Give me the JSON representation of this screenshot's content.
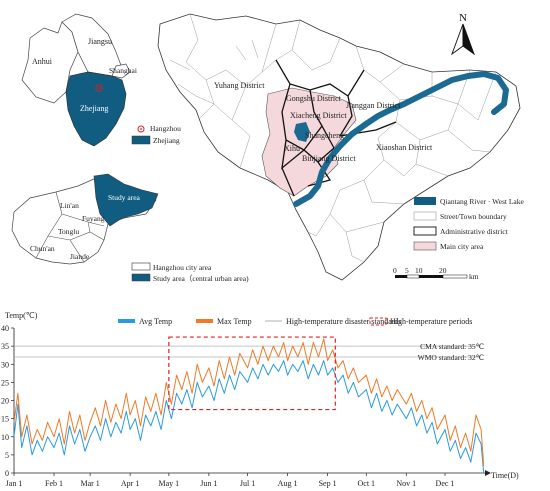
{
  "maps": {
    "province_labels": [
      "Anhui",
      "Jiangsu",
      "Shanghai",
      "Zhejiang"
    ],
    "inset_legend": {
      "point_label": "Hangzhou",
      "area_label": "Zhejiang"
    },
    "city_labels": [
      "Lin'an",
      "Fuyang",
      "Tonglu",
      "Chun'an",
      "Jiande",
      "Study area"
    ],
    "city_legend": {
      "city_label": "Hangzhou city area",
      "study_label": "Study area（central urban area)"
    },
    "district_labels": [
      "Yuhang District",
      "Gongshu District",
      "Xiacheng District",
      "Jianggan District",
      "Shangcheng",
      "Xihu",
      "Binjiang District",
      "Xiaoshan District"
    ],
    "north_label": "N",
    "main_legend": [
      "Qiantang River · West Lake",
      "Street/Town boundary",
      "Administrative district",
      "Main city area"
    ],
    "scalebar": {
      "ticks": [
        "0",
        "5",
        "10",
        "20"
      ],
      "unit": "km"
    },
    "colors": {
      "water": "#1a6a92",
      "main_city": "#f4d8dc",
      "boundary": "#9a9a9a",
      "district": "#222222"
    }
  },
  "chart_data": {
    "type": "line",
    "ylabel": "Temp(℃)",
    "xlabel": "Time(D)",
    "ylim": [
      0,
      40
    ],
    "yticks": [
      0,
      5,
      10,
      15,
      20,
      25,
      30,
      35,
      40
    ],
    "months": [
      "Jan 1",
      "Feb 1",
      "Mar 1",
      "Apr 1",
      "May 1",
      "Jun 1",
      "Jul 1",
      "Aug 1",
      "Sep 1",
      "Oct 1",
      "Nov 1",
      "Dec 1"
    ],
    "month_start_days": [
      0,
      31,
      59,
      90,
      120,
      151,
      181,
      212,
      243,
      273,
      304,
      334
    ],
    "days_in_year": 365,
    "legend": [
      "Avg Temp",
      "Max Temp",
      "High-temperature disaster standards",
      "High-temperature periods"
    ],
    "series_colors": {
      "avg": "#2b9be0",
      "max": "#ef7a27",
      "standard": "#b0b0b0",
      "period": "#e02020"
    },
    "standards": [
      {
        "label": "CMA standard: 35℃",
        "value": 35
      },
      {
        "label": "WMO standard: 32℃",
        "value": 32
      }
    ],
    "high_temp_period": {
      "start_day": 120,
      "end_day": 249,
      "low": 17.5,
      "high": 37.5
    },
    "series": [
      {
        "name": "Avg Temp",
        "key": "avg",
        "values": [
          {
            "d": 0,
            "v": 10
          },
          {
            "d": 3,
            "v": 19
          },
          {
            "d": 6,
            "v": 7
          },
          {
            "d": 10,
            "v": 13
          },
          {
            "d": 14,
            "v": 5
          },
          {
            "d": 18,
            "v": 9
          },
          {
            "d": 22,
            "v": 6
          },
          {
            "d": 26,
            "v": 10
          },
          {
            "d": 31,
            "v": 7
          },
          {
            "d": 35,
            "v": 11
          },
          {
            "d": 39,
            "v": 5
          },
          {
            "d": 43,
            "v": 13
          },
          {
            "d": 47,
            "v": 8
          },
          {
            "d": 51,
            "v": 12
          },
          {
            "d": 55,
            "v": 6
          },
          {
            "d": 59,
            "v": 10
          },
          {
            "d": 63,
            "v": 13
          },
          {
            "d": 67,
            "v": 9
          },
          {
            "d": 71,
            "v": 15
          },
          {
            "d": 75,
            "v": 10
          },
          {
            "d": 79,
            "v": 14
          },
          {
            "d": 83,
            "v": 11
          },
          {
            "d": 87,
            "v": 17
          },
          {
            "d": 90,
            "v": 12
          },
          {
            "d": 94,
            "v": 15
          },
          {
            "d": 98,
            "v": 9
          },
          {
            "d": 102,
            "v": 16
          },
          {
            "d": 106,
            "v": 13
          },
          {
            "d": 110,
            "v": 17
          },
          {
            "d": 114,
            "v": 12
          },
          {
            "d": 118,
            "v": 20
          },
          {
            "d": 122,
            "v": 15
          },
          {
            "d": 126,
            "v": 22
          },
          {
            "d": 130,
            "v": 19
          },
          {
            "d": 134,
            "v": 23
          },
          {
            "d": 138,
            "v": 18
          },
          {
            "d": 142,
            "v": 25
          },
          {
            "d": 146,
            "v": 21
          },
          {
            "d": 151,
            "v": 24
          },
          {
            "d": 155,
            "v": 20
          },
          {
            "d": 159,
            "v": 26
          },
          {
            "d": 163,
            "v": 22
          },
          {
            "d": 167,
            "v": 27
          },
          {
            "d": 171,
            "v": 23
          },
          {
            "d": 175,
            "v": 28
          },
          {
            "d": 181,
            "v": 25
          },
          {
            "d": 185,
            "v": 29
          },
          {
            "d": 189,
            "v": 26
          },
          {
            "d": 193,
            "v": 30
          },
          {
            "d": 197,
            "v": 27
          },
          {
            "d": 201,
            "v": 30
          },
          {
            "d": 205,
            "v": 28
          },
          {
            "d": 209,
            "v": 31
          },
          {
            "d": 212,
            "v": 27
          },
          {
            "d": 216,
            "v": 30
          },
          {
            "d": 220,
            "v": 28
          },
          {
            "d": 224,
            "v": 31
          },
          {
            "d": 228,
            "v": 26
          },
          {
            "d": 232,
            "v": 30
          },
          {
            "d": 236,
            "v": 27
          },
          {
            "d": 240,
            "v": 31
          },
          {
            "d": 243,
            "v": 27
          },
          {
            "d": 247,
            "v": 29
          },
          {
            "d": 251,
            "v": 25
          },
          {
            "d": 255,
            "v": 27
          },
          {
            "d": 259,
            "v": 22
          },
          {
            "d": 263,
            "v": 25
          },
          {
            "d": 267,
            "v": 21
          },
          {
            "d": 273,
            "v": 23
          },
          {
            "d": 277,
            "v": 18
          },
          {
            "d": 281,
            "v": 22
          },
          {
            "d": 285,
            "v": 17
          },
          {
            "d": 289,
            "v": 20
          },
          {
            "d": 293,
            "v": 16
          },
          {
            "d": 297,
            "v": 19
          },
          {
            "d": 304,
            "v": 15
          },
          {
            "d": 308,
            "v": 18
          },
          {
            "d": 312,
            "v": 13
          },
          {
            "d": 316,
            "v": 16
          },
          {
            "d": 320,
            "v": 11
          },
          {
            "d": 324,
            "v": 14
          },
          {
            "d": 328,
            "v": 8
          },
          {
            "d": 334,
            "v": 12
          },
          {
            "d": 338,
            "v": 6
          },
          {
            "d": 342,
            "v": 9
          },
          {
            "d": 346,
            "v": 4
          },
          {
            "d": 350,
            "v": 7
          },
          {
            "d": 354,
            "v": 3
          },
          {
            "d": 358,
            "v": 11
          },
          {
            "d": 362,
            "v": 8
          },
          {
            "d": 364,
            "v": 0
          }
        ]
      },
      {
        "name": "Max Temp",
        "key": "max",
        "values": [
          {
            "d": 0,
            "v": 14
          },
          {
            "d": 3,
            "v": 22
          },
          {
            "d": 6,
            "v": 10
          },
          {
            "d": 10,
            "v": 16
          },
          {
            "d": 14,
            "v": 8
          },
          {
            "d": 18,
            "v": 12
          },
          {
            "d": 22,
            "v": 9
          },
          {
            "d": 26,
            "v": 14
          },
          {
            "d": 31,
            "v": 10
          },
          {
            "d": 35,
            "v": 15
          },
          {
            "d": 39,
            "v": 8
          },
          {
            "d": 43,
            "v": 17
          },
          {
            "d": 47,
            "v": 11
          },
          {
            "d": 51,
            "v": 16
          },
          {
            "d": 55,
            "v": 9
          },
          {
            "d": 59,
            "v": 14
          },
          {
            "d": 63,
            "v": 18
          },
          {
            "d": 67,
            "v": 13
          },
          {
            "d": 71,
            "v": 20
          },
          {
            "d": 75,
            "v": 14
          },
          {
            "d": 79,
            "v": 19
          },
          {
            "d": 83,
            "v": 15
          },
          {
            "d": 87,
            "v": 22
          },
          {
            "d": 90,
            "v": 16
          },
          {
            "d": 94,
            "v": 20
          },
          {
            "d": 98,
            "v": 13
          },
          {
            "d": 102,
            "v": 21
          },
          {
            "d": 106,
            "v": 17
          },
          {
            "d": 110,
            "v": 22
          },
          {
            "d": 114,
            "v": 16
          },
          {
            "d": 118,
            "v": 25
          },
          {
            "d": 122,
            "v": 19
          },
          {
            "d": 126,
            "v": 27
          },
          {
            "d": 130,
            "v": 23
          },
          {
            "d": 134,
            "v": 28
          },
          {
            "d": 138,
            "v": 22
          },
          {
            "d": 142,
            "v": 30
          },
          {
            "d": 146,
            "v": 25
          },
          {
            "d": 151,
            "v": 29
          },
          {
            "d": 155,
            "v": 24
          },
          {
            "d": 159,
            "v": 31
          },
          {
            "d": 163,
            "v": 26
          },
          {
            "d": 167,
            "v": 32
          },
          {
            "d": 171,
            "v": 27
          },
          {
            "d": 175,
            "v": 33
          },
          {
            "d": 181,
            "v": 29
          },
          {
            "d": 185,
            "v": 34
          },
          {
            "d": 189,
            "v": 30
          },
          {
            "d": 193,
            "v": 35
          },
          {
            "d": 197,
            "v": 31
          },
          {
            "d": 201,
            "v": 35
          },
          {
            "d": 205,
            "v": 32
          },
          {
            "d": 209,
            "v": 36
          },
          {
            "d": 212,
            "v": 31
          },
          {
            "d": 216,
            "v": 35
          },
          {
            "d": 220,
            "v": 32
          },
          {
            "d": 224,
            "v": 36
          },
          {
            "d": 228,
            "v": 30
          },
          {
            "d": 232,
            "v": 36
          },
          {
            "d": 236,
            "v": 32
          },
          {
            "d": 240,
            "v": 37
          },
          {
            "d": 243,
            "v": 31
          },
          {
            "d": 247,
            "v": 34
          },
          {
            "d": 251,
            "v": 29
          },
          {
            "d": 255,
            "v": 31
          },
          {
            "d": 259,
            "v": 26
          },
          {
            "d": 263,
            "v": 29
          },
          {
            "d": 267,
            "v": 25
          },
          {
            "d": 273,
            "v": 27
          },
          {
            "d": 277,
            "v": 22
          },
          {
            "d": 281,
            "v": 26
          },
          {
            "d": 285,
            "v": 21
          },
          {
            "d": 289,
            "v": 24
          },
          {
            "d": 293,
            "v": 20
          },
          {
            "d": 297,
            "v": 23
          },
          {
            "d": 304,
            "v": 19
          },
          {
            "d": 308,
            "v": 22
          },
          {
            "d": 312,
            "v": 17
          },
          {
            "d": 316,
            "v": 20
          },
          {
            "d": 320,
            "v": 15
          },
          {
            "d": 324,
            "v": 18
          },
          {
            "d": 328,
            "v": 12
          },
          {
            "d": 334,
            "v": 16
          },
          {
            "d": 338,
            "v": 9
          },
          {
            "d": 342,
            "v": 13
          },
          {
            "d": 346,
            "v": 7
          },
          {
            "d": 350,
            "v": 11
          },
          {
            "d": 354,
            "v": 6
          },
          {
            "d": 358,
            "v": 16
          },
          {
            "d": 362,
            "v": 12
          },
          {
            "d": 364,
            "v": 2
          }
        ]
      }
    ]
  }
}
